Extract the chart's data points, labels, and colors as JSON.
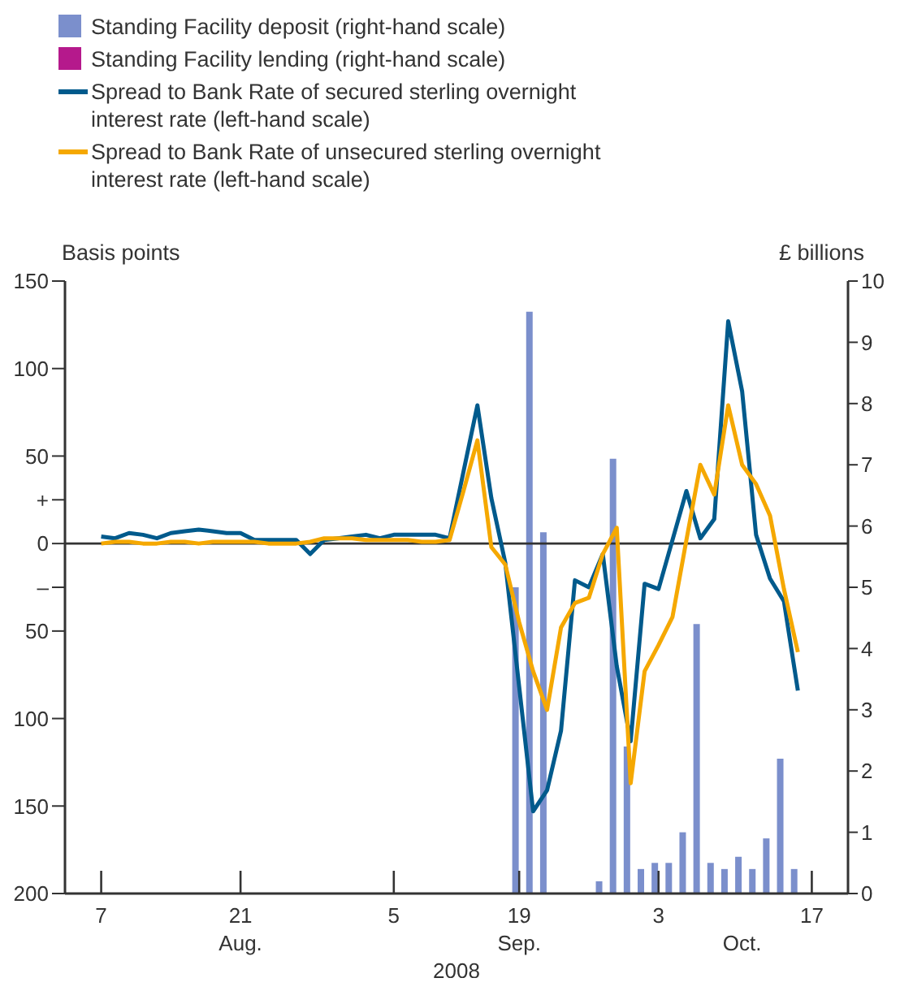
{
  "chart_data": {
    "type": "line",
    "xlabel": "2008",
    "ylabel": "Basis points",
    "y2label": "£ billions",
    "annotations": [
      "Aug.",
      "Sep.",
      "Oct."
    ],
    "categories": [
      "7",
      null,
      null,
      null,
      null,
      null,
      null,
      null,
      null,
      null,
      "21",
      null,
      null,
      null,
      null,
      null,
      null,
      null,
      null,
      null,
      null,
      "5",
      null,
      null,
      null,
      null,
      null,
      null,
      null,
      null,
      "19",
      null,
      null,
      null,
      null,
      null,
      null,
      null,
      null,
      null,
      "3",
      null,
      null,
      null,
      null,
      null,
      null,
      null,
      null,
      null,
      null,
      "17"
    ],
    "ylim": [
      -200,
      150
    ],
    "yticks": [
      {
        "value": 150,
        "label": "150"
      },
      {
        "value": 100,
        "label": "100"
      },
      {
        "value": 50,
        "label": "50"
      },
      {
        "value": 25,
        "label": "+"
      },
      0,
      {
        "value": -25,
        "label": "–"
      },
      {
        "value": -50,
        "label": "50"
      },
      {
        "value": -100,
        "label": "100"
      },
      {
        "value": -150,
        "label": "150"
      },
      {
        "value": -200,
        "label": "200"
      }
    ],
    "y2lim": [
      0,
      10
    ],
    "y2ticks": [
      0,
      1,
      2,
      3,
      4,
      5,
      6,
      7,
      8,
      9,
      10
    ],
    "legend": "top left",
    "grid": false,
    "marker": "none",
    "line_style": "solid",
    "ref_lines": [
      {
        "axis": "y",
        "value": 0,
        "color": "#333333"
      }
    ],
    "series": [
      {
        "name": "Standing Facility deposit (right-hand scale)",
        "type": "bar",
        "axis": "y2",
        "color": "#7b8fcc",
        "values": [
          null,
          null,
          null,
          null,
          null,
          null,
          null,
          null,
          null,
          null,
          null,
          null,
          null,
          null,
          null,
          null,
          null,
          null,
          null,
          null,
          null,
          null,
          null,
          null,
          null,
          null,
          null,
          null,
          null,
          null,
          5.0,
          9.5,
          5.9,
          null,
          null,
          null,
          0.2,
          7.1,
          2.4,
          0.4,
          0.5,
          0.5,
          1.0,
          4.4,
          0.5,
          0.4,
          0.6,
          0.4,
          0.9,
          2.2,
          0.4,
          null
        ]
      },
      {
        "name": "Standing Facility lending (right-hand scale)",
        "type": "bar",
        "axis": "y2",
        "color": "#b5198c",
        "values": [
          null,
          null,
          null,
          null,
          null,
          null,
          null,
          null,
          null,
          null,
          null,
          null,
          null,
          null,
          null,
          null,
          null,
          null,
          null,
          null,
          null,
          null,
          null,
          null,
          null,
          null,
          null,
          null,
          null,
          null,
          null,
          null,
          null,
          null,
          null,
          null,
          null,
          null,
          null,
          null,
          null,
          null,
          null,
          null,
          null,
          null,
          null,
          null,
          null,
          null,
          null,
          null
        ]
      },
      {
        "name": "Spread to Bank Rate of secured sterling overnight interest rate (left-hand scale)",
        "color": "#005a8c",
        "values": [
          4,
          3,
          6,
          5,
          3,
          6,
          7,
          8,
          7,
          6,
          6,
          2,
          2,
          2,
          2,
          -6,
          2,
          3,
          4,
          5,
          3,
          5,
          5,
          5,
          5,
          3,
          41,
          79,
          26,
          -11,
          -82,
          -153,
          -141,
          -107,
          -21,
          -25,
          -6,
          -70,
          -113,
          -23,
          -26,
          2,
          30,
          3,
          14,
          127,
          87,
          5,
          -20,
          -33,
          -84,
          null
        ]
      },
      {
        "name": "Spread to Bank Rate of unsecured sterling overnight interest rate (left-hand scale)",
        "color": "#f5a800",
        "values": [
          0,
          1,
          1,
          0,
          0,
          1,
          1,
          0,
          1,
          1,
          1,
          1,
          0,
          0,
          0,
          1,
          3,
          3,
          3,
          2,
          2,
          2,
          2,
          1,
          1,
          2,
          30,
          59,
          -2,
          -12,
          -45,
          -73,
          -95,
          -48,
          -34,
          -31,
          -6,
          9,
          -137,
          -73,
          -58,
          -42,
          2,
          45,
          28,
          79,
          45,
          34,
          16,
          -26,
          -62,
          null
        ]
      }
    ]
  }
}
